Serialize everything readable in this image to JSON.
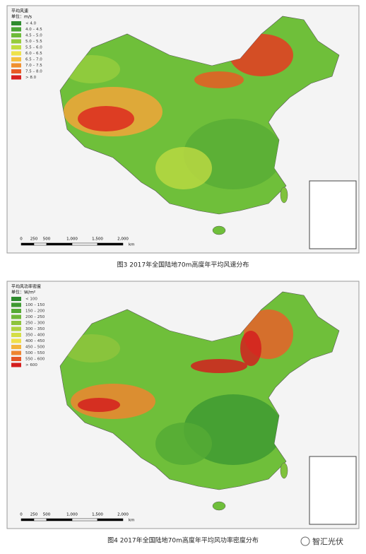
{
  "figures": [
    {
      "legend_title": "平均风速",
      "legend_unit": "单位：m/s",
      "legend_items": [
        "< 4.0",
        "4.0 – 4.5",
        "4.5 – 5.0",
        "5.0 – 5.5",
        "5.5 – 6.0",
        "6.0 – 6.5",
        "6.5 – 7.0",
        "7.0 – 7.5",
        "7.5 – 8.0",
        "> 8.0"
      ],
      "scale_labels": [
        "0",
        "250",
        "500",
        "1,000",
        "1,500",
        "2,000"
      ],
      "scale_unit": "km",
      "caption": "图3  2017年全国陆地70m高度年平均风速分布"
    },
    {
      "legend_title": "平均风功率密度",
      "legend_unit": "单位：W/m²",
      "legend_items": [
        "< 100",
        "100 – 150",
        "150 – 200",
        "200 – 250",
        "250 – 300",
        "300 – 350",
        "350 – 400",
        "400 – 450",
        "450 – 500",
        "500 – 550",
        "550 – 600",
        "> 600"
      ],
      "scale_labels": [
        "0",
        "250",
        "500",
        "1,000",
        "1,500",
        "2,000"
      ],
      "scale_unit": "km",
      "caption": "图4  2017年全国陆地70m高度年平均风功率密度分布"
    }
  ],
  "watermark": "智汇光伏"
}
